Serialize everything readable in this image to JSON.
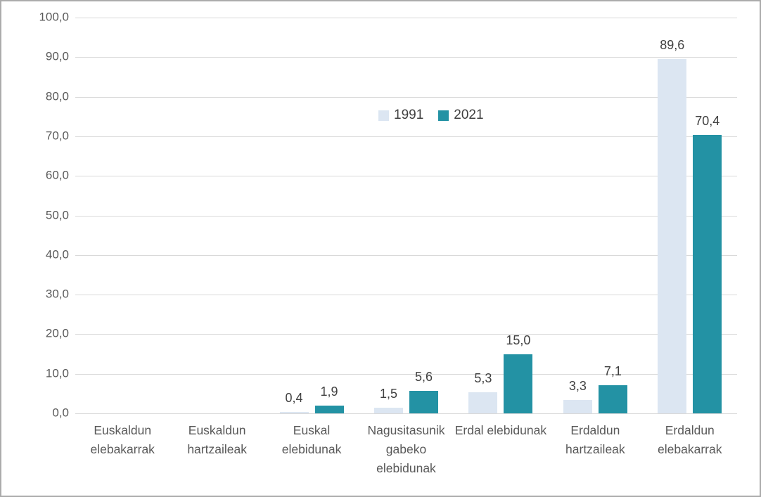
{
  "chart_data": {
    "type": "bar",
    "title": "",
    "categories": [
      "Euskaldun elebakarrak",
      "Euskaldun hartzaileak",
      "Euskal elebidunak",
      "Nagusitasunik gabeko elebidunak",
      "Erdal elebidunak",
      "Erdaldun hartzaileak",
      "Erdaldun elebakarrak"
    ],
    "series": [
      {
        "name": "1991",
        "color": "#dce6f2",
        "values": [
          null,
          null,
          0.4,
          1.5,
          5.3,
          3.3,
          89.6
        ],
        "labels": [
          null,
          null,
          "0,4",
          "1,5",
          "5,3",
          "3,3",
          "89,6"
        ]
      },
      {
        "name": "2021",
        "color": "#2392a4",
        "values": [
          null,
          null,
          1.9,
          5.6,
          15.0,
          7.1,
          70.4
        ],
        "labels": [
          null,
          null,
          "1,9",
          "5,6",
          "15,0",
          "7,1",
          "70,4"
        ]
      }
    ],
    "ylim": [
      0,
      100
    ],
    "ytick_step": 10,
    "ytick_labels": [
      "0,0",
      "10,0",
      "20,0",
      "30,0",
      "40,0",
      "50,0",
      "60,0",
      "70,0",
      "80,0",
      "90,0",
      "100,0"
    ],
    "grid": true,
    "legend_position": "inside-top-center",
    "colors": {
      "grid": "#d9d9d9",
      "axis_text": "#595959",
      "value_text": "#404040",
      "border": "#ababab",
      "background": "#ffffff"
    }
  }
}
